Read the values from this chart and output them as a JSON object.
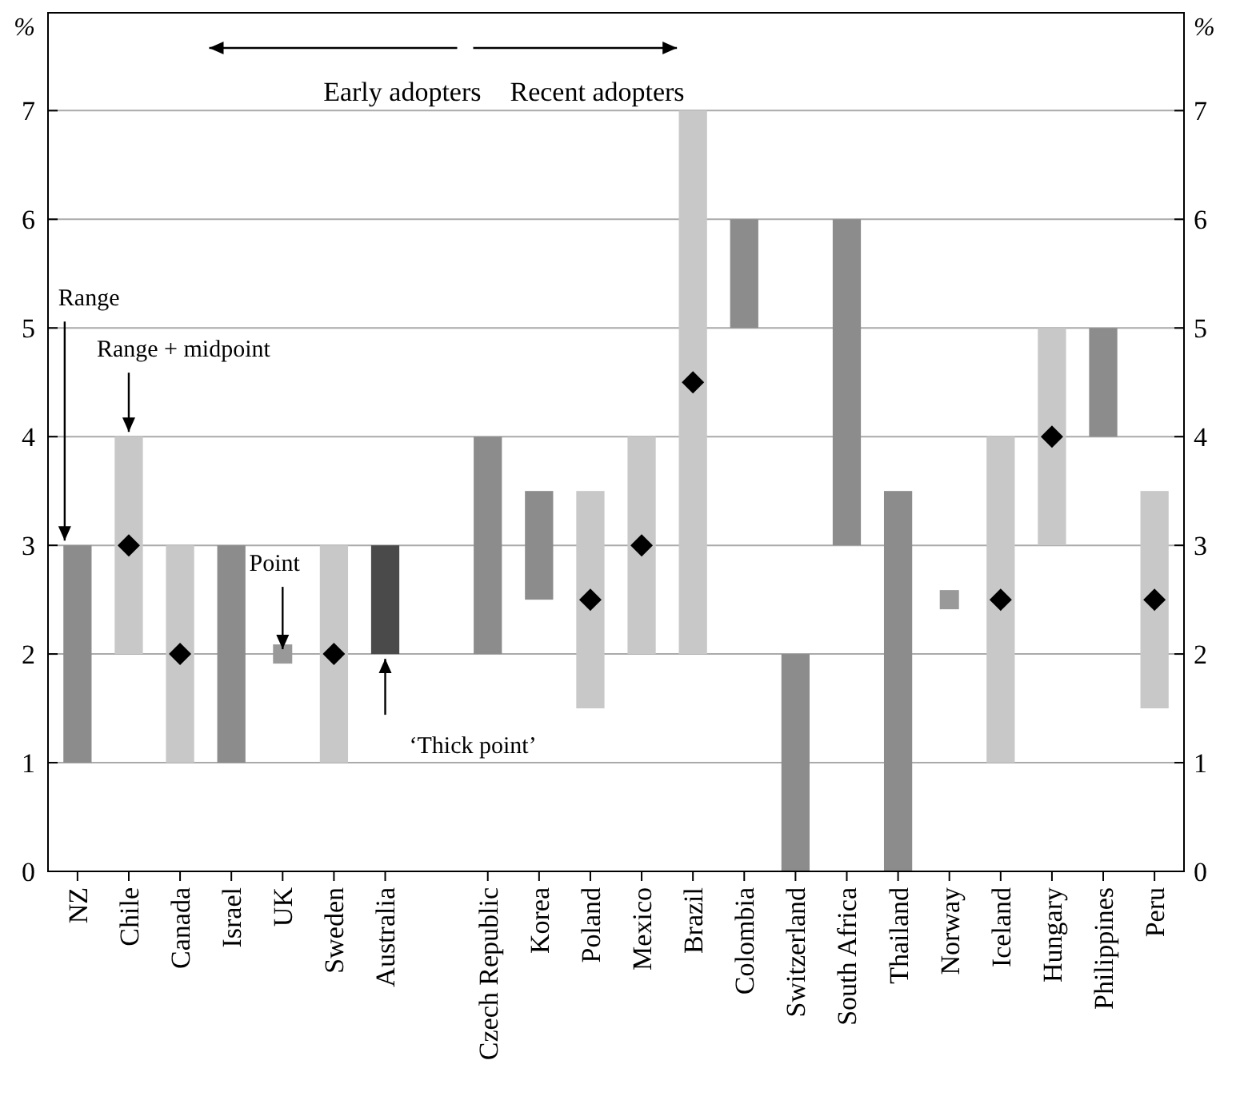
{
  "chart_data": {
    "type": "bar",
    "ylabel": "%",
    "y2label": "%",
    "categories": [
      "NZ",
      "Chile",
      "Canada",
      "Israel",
      "UK",
      "Sweden",
      "Australia",
      null,
      "Czech Republic",
      "Korea",
      "Poland",
      "Mexico",
      "Brazil",
      "Colombia",
      "Switzerland",
      "South Africa",
      "Thailand",
      "Norway",
      "Iceland",
      "Hungary",
      "Philippines",
      "Peru"
    ],
    "series": [
      {
        "base": [
          1,
          2,
          1,
          1,
          null,
          1,
          2,
          null,
          2,
          2.5,
          1.5,
          2,
          2,
          5,
          0,
          3,
          0,
          null,
          1,
          3,
          4,
          1.5
        ],
        "values": [
          2,
          2,
          2,
          2,
          null,
          2,
          1,
          null,
          2,
          1,
          2,
          2,
          5,
          1,
          2,
          3,
          3.5,
          null,
          3,
          2,
          1,
          2
        ],
        "colors": [
          "#8c8c8c",
          "#c8c8c8",
          "#c8c8c8",
          "#8c8c8c",
          null,
          "#c8c8c8",
          "#4a4a4a",
          null,
          "#8c8c8c",
          "#8c8c8c",
          "#c8c8c8",
          "#c8c8c8",
          "#c8c8c8",
          "#8c8c8c",
          "#8c8c8c",
          "#8c8c8c",
          "#8c8c8c",
          null,
          "#c8c8c8",
          "#c8c8c8",
          "#8c8c8c",
          "#c8c8c8"
        ]
      },
      {
        "type": "scatter",
        "marker": "diamond",
        "color": "#000000",
        "values": [
          null,
          3,
          2,
          null,
          null,
          2,
          null,
          null,
          null,
          null,
          2.5,
          3,
          4.5,
          null,
          null,
          null,
          null,
          null,
          2.5,
          4,
          null,
          2.5
        ]
      },
      {
        "type": "scatter",
        "marker": "square",
        "color": "#999999",
        "values": [
          null,
          null,
          null,
          null,
          2,
          null,
          null,
          null,
          null,
          null,
          null,
          null,
          null,
          null,
          null,
          null,
          null,
          2.5,
          null,
          null,
          null,
          null
        ]
      }
    ],
    "ylim": [
      0,
      7.9
    ],
    "yticks": [
      0,
      1,
      2,
      3,
      4,
      5,
      6,
      7
    ],
    "y2lim": [
      0,
      7.9
    ],
    "y2ticks": [
      0,
      1,
      2,
      3,
      4,
      5,
      6,
      7
    ],
    "grid": "y",
    "annotations": [
      "Early adopters",
      "Recent adopters",
      {
        "text": "Range",
        "x": "NZ",
        "y": 3
      },
      {
        "text": "Range + midpoint",
        "x": "Chile",
        "y": 4
      },
      {
        "text": "Point",
        "x": "UK",
        "y": 2
      },
      {
        "text": "‘Thick point’",
        "x": "Australia",
        "y": 2
      }
    ]
  }
}
